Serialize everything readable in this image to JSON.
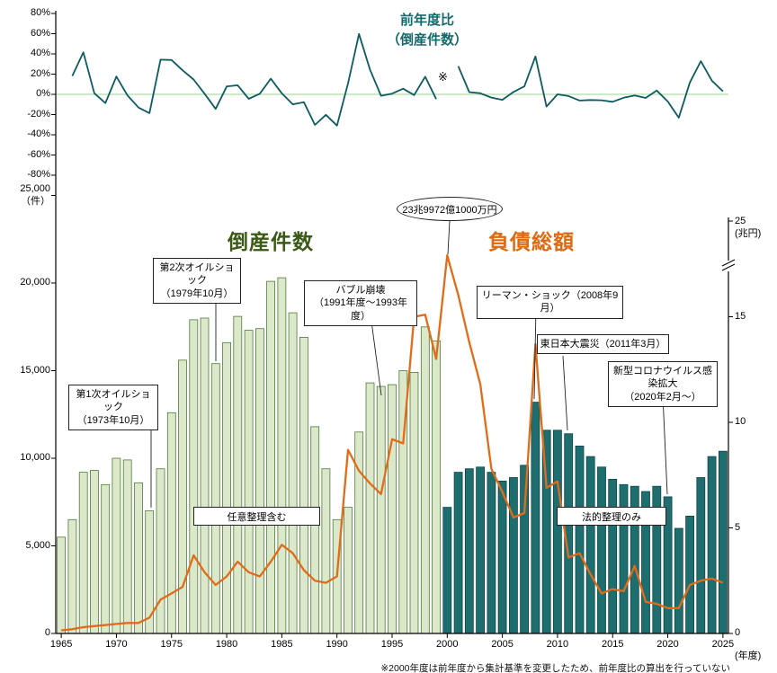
{
  "titles": {
    "bars": "倒産件数",
    "liabilities": "負債総額",
    "yoy_line1": "前年度比",
    "yoy_line2": "（倒産件数）",
    "yoy_note_marker": "※"
  },
  "axes": {
    "left_top_value": "25,000",
    "left_unit": "（件）",
    "right_top_value": "25",
    "right_unit": "(兆円)",
    "x_unit": "(年度)"
  },
  "footnote": "※2000年度は前年度から集計基準を変更したため、前年度比の算出を行っていない",
  "annotations": {
    "oil1": {
      "line1": "第1次オイルショック",
      "line2": "（1973年10月）",
      "target_year": 1973
    },
    "oil2": {
      "line1": "第2次オイルショック",
      "line2": "（1979年10月）",
      "target_year": 1979
    },
    "bubble": {
      "line1": "バブル崩壊",
      "line2": "（1991年度～1993年度）",
      "target_year": 1993
    },
    "record": {
      "text": "23兆9972億1000万円",
      "target_year": 2000
    },
    "lehman": {
      "text": "リーマン・ショック（2008年9月）",
      "target_year": 2008
    },
    "quake": {
      "text": "東日本大震災（2011年3月）",
      "target_year": 2011
    },
    "covid": {
      "line1": "新型コロナウイルス感染拡大",
      "line2": "（2020年2月～）",
      "target_year": 2020
    },
    "seg_green": {
      "text": "任意整理含む"
    },
    "seg_teal": {
      "text": "法的整理のみ"
    }
  },
  "chart_data": {
    "type": "bar+line combo with secondary top line panel",
    "years": [
      1965,
      1966,
      1967,
      1968,
      1969,
      1970,
      1971,
      1972,
      1973,
      1974,
      1975,
      1976,
      1977,
      1978,
      1979,
      1980,
      1981,
      1982,
      1983,
      1984,
      1985,
      1986,
      1987,
      1988,
      1989,
      1990,
      1991,
      1992,
      1993,
      1994,
      1995,
      1996,
      1997,
      1998,
      1999,
      2000,
      2001,
      2002,
      2003,
      2004,
      2005,
      2006,
      2007,
      2008,
      2009,
      2010,
      2011,
      2012,
      2013,
      2014,
      2015,
      2016,
      2017,
      2018,
      2019,
      2020,
      2021,
      2022,
      2023,
      2024,
      2025
    ],
    "series_counts": {
      "name": "倒産件数",
      "type": "bar",
      "unit": "件",
      "axis": "left",
      "split_year": 2000,
      "label_before_2000": "任意整理含む",
      "label_from_2000": "法的整理のみ",
      "values": [
        5500,
        6500,
        9200,
        9300,
        8500,
        10000,
        9900,
        8600,
        7000,
        9400,
        12600,
        15600,
        17900,
        18000,
        15400,
        16600,
        18100,
        17300,
        17400,
        20100,
        20300,
        18300,
        16900,
        11800,
        9400,
        6500,
        7200,
        11500,
        14300,
        14100,
        14200,
        15000,
        14900,
        17500,
        16700,
        7200,
        9200,
        9400,
        9500,
        9200,
        8700,
        8900,
        9600,
        13200,
        11600,
        11600,
        11400,
        10700,
        10100,
        9500,
        8800,
        8500,
        8400,
        8100,
        8400,
        7800,
        6000,
        6700,
        8900,
        10100,
        10400
      ]
    },
    "series_liabilities": {
      "name": "負債総額",
      "type": "line",
      "unit": "兆円",
      "axis": "right",
      "peak_label": "23兆9972億1000万円",
      "values": [
        0.15,
        0.2,
        0.3,
        0.35,
        0.4,
        0.45,
        0.5,
        0.5,
        0.75,
        1.6,
        1.9,
        2.2,
        3.7,
        2.9,
        2.3,
        2.7,
        3.4,
        2.9,
        2.7,
        3.4,
        4.2,
        3.8,
        3.0,
        2.5,
        2.4,
        2.7,
        8.7,
        7.7,
        7.1,
        6.6,
        9.2,
        9.0,
        15.0,
        15.1,
        13.0,
        23.9972,
        16.1,
        13.8,
        11.8,
        7.8,
        6.7,
        5.5,
        5.7,
        13.7,
        6.9,
        7.2,
        3.6,
        3.8,
        2.8,
        1.9,
        2.1,
        2.0,
        3.2,
        1.5,
        1.4,
        1.2,
        1.2,
        2.3,
        2.5,
        2.6,
        2.4
      ]
    },
    "series_yoy": {
      "name": "前年度比（倒産件数）",
      "type": "line",
      "unit": "%",
      "panel": "top",
      "gap_note": "2000年度は前年度比なし",
      "values": [
        null,
        18.2,
        41.5,
        1.1,
        -8.6,
        17.6,
        -1.0,
        -13.1,
        -18.6,
        34.3,
        34.0,
        23.8,
        14.7,
        0.6,
        -14.4,
        7.8,
        9.0,
        -4.4,
        0.6,
        15.5,
        1.0,
        -9.9,
        -7.7,
        -30.2,
        -20.3,
        -30.9,
        10.8,
        59.7,
        24.3,
        -1.4,
        0.7,
        5.6,
        -0.7,
        17.4,
        -4.6,
        null,
        27.8,
        2.2,
        1.1,
        -3.2,
        -5.4,
        2.3,
        7.9,
        37.5,
        -12.1,
        0.0,
        -1.7,
        -6.1,
        -5.6,
        -5.9,
        -7.4,
        -3.4,
        -1.2,
        -3.6,
        3.7,
        -7.1,
        -23.1,
        11.7,
        32.8,
        13.5,
        3.0
      ]
    },
    "left_axis": {
      "ticks": [
        0,
        5000,
        10000,
        15000,
        20000,
        25000
      ],
      "max": 25000,
      "unit": "件"
    },
    "right_axis": {
      "ticks": [
        0,
        5,
        10,
        15,
        25
      ],
      "break_between": [
        16,
        24
      ],
      "unit": "兆円"
    },
    "top_axis": {
      "ticks_pct": [
        80,
        60,
        40,
        20,
        0,
        -20,
        -40,
        -60,
        -80
      ]
    },
    "x_ticks": [
      1965,
      1970,
      1975,
      1980,
      1985,
      1990,
      1995,
      2000,
      2005,
      2010,
      2015,
      2020,
      2025
    ],
    "grid": "off",
    "colors": {
      "bar_before": "#dbe8c9",
      "bar_before_border": "#4f7a38",
      "bar_after": "#1e6e70",
      "bar_after_border": "#0d4547",
      "liabilities": "#e06c1a",
      "yoy": "#0d5b60",
      "zero_line": "#cde9c8",
      "title_counts": "#3a5a14",
      "title_liabilities": "#dd6a10",
      "title_yoy": "#14696c",
      "axis": "#000000"
    }
  }
}
